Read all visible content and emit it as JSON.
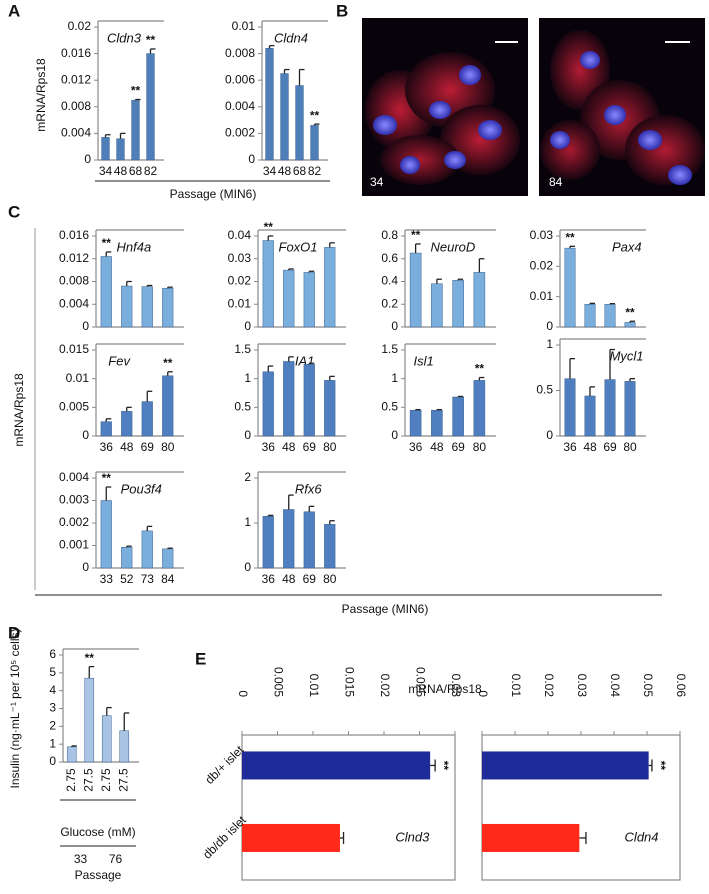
{
  "panels": [
    "A",
    "B",
    "C",
    "D",
    "E"
  ],
  "shared": {
    "a_ylabel": "mRNA/Rps18",
    "a_xlabel": "Passage (MIN6)",
    "c_ylabel": "mRNA/Rps18",
    "c_xlabel": "Passage (MIN6)",
    "e_xlabel": "mRNA/Rps18"
  },
  "images": [
    {
      "label": "34"
    },
    {
      "label": "84"
    }
  ],
  "chart_data": [
    {
      "type": "bar",
      "title": "Cldn3",
      "categories": [
        "34",
        "48",
        "68",
        "82"
      ],
      "values": [
        0.0034,
        0.0032,
        0.009,
        0.016
      ],
      "errors": [
        0.0004,
        0.0008,
        0.0001,
        0.0007
      ],
      "annotations": [
        null,
        null,
        "**",
        "**"
      ],
      "color": "#4f7fb8",
      "ylim": [
        0,
        0.02
      ],
      "yticks": [
        0,
        0.004,
        0.008,
        0.012,
        0.016,
        0.02
      ]
    },
    {
      "type": "bar",
      "title": "Cldn4",
      "categories": [
        "34",
        "48",
        "68",
        "82"
      ],
      "values": [
        0.0084,
        0.0065,
        0.0056,
        0.0026
      ],
      "errors": [
        0.0002,
        0.0003,
        0.0012,
        0.0001
      ],
      "annotations": [
        null,
        null,
        null,
        "**"
      ],
      "color": "#4f7fb8",
      "ylim": [
        0,
        0.01
      ],
      "yticks": [
        0,
        0.002,
        0.004,
        0.006,
        0.008,
        0.01
      ]
    },
    {
      "type": "bar",
      "title": "Hnf4a",
      "categories": [
        null,
        null,
        null,
        null
      ],
      "values": [
        0.0124,
        0.0072,
        0.0071,
        0.0068
      ],
      "errors": [
        0.0008,
        0.0008,
        0.0002,
        0.0002
      ],
      "annotations": [
        "**",
        null,
        null,
        null
      ],
      "color": "#7aafdd",
      "ylim": [
        0,
        0.016
      ],
      "yticks": [
        0,
        0.004,
        0.008,
        0.012,
        0.016
      ]
    },
    {
      "type": "bar",
      "title": "FoxO1",
      "categories": [
        null,
        null,
        null,
        null
      ],
      "values": [
        0.038,
        0.025,
        0.024,
        0.035
      ],
      "errors": [
        0.002,
        0.0005,
        0.0005,
        0.002
      ],
      "annotations": [
        "**",
        null,
        null,
        null
      ],
      "color": "#7aafdd",
      "ylim": [
        0,
        0.04
      ],
      "yticks": [
        0,
        0.01,
        0.02,
        0.03,
        0.04
      ]
    },
    {
      "type": "bar",
      "title": "NeuroD",
      "categories": [
        null,
        null,
        null,
        null
      ],
      "values": [
        0.65,
        0.38,
        0.41,
        0.48
      ],
      "errors": [
        0.08,
        0.04,
        0.01,
        0.12
      ],
      "annotations": [
        "**",
        null,
        null,
        null
      ],
      "color": "#7aafdd",
      "ylim": [
        0,
        0.8
      ],
      "yticks": [
        0,
        0.2,
        0.4,
        0.6,
        0.8
      ]
    },
    {
      "type": "bar",
      "title": "Pax4",
      "categories": [
        null,
        null,
        null,
        null
      ],
      "values": [
        0.026,
        0.0075,
        0.0075,
        0.0015
      ],
      "errors": [
        0.0006,
        0.0003,
        0.0002,
        0.0004
      ],
      "annotations": [
        "**",
        null,
        null,
        "**"
      ],
      "color": "#7aafdd",
      "ylim": [
        0,
        0.03
      ],
      "yticks": [
        0,
        0.01,
        0.02,
        0.03
      ]
    },
    {
      "type": "bar",
      "title": "Fev",
      "categories": [
        "36",
        "48",
        "69",
        "80"
      ],
      "values": [
        0.0025,
        0.0043,
        0.006,
        0.0105
      ],
      "errors": [
        0.0005,
        0.0007,
        0.0018,
        0.0007
      ],
      "annotations": [
        null,
        null,
        null,
        "**"
      ],
      "color": "#4f7fc0",
      "ylim": [
        0,
        0.015
      ],
      "yticks": [
        0,
        0.005,
        0.01,
        0.015
      ]
    },
    {
      "type": "bar",
      "title": "IA1",
      "categories": [
        "36",
        "48",
        "69",
        "80"
      ],
      "values": [
        1.12,
        1.3,
        1.25,
        0.97
      ],
      "errors": [
        0.1,
        0.08,
        0.02,
        0.07
      ],
      "annotations": [
        null,
        null,
        null,
        null
      ],
      "color": "#4f7fc0",
      "ylim": [
        0,
        1.5
      ],
      "yticks": [
        0,
        0.5,
        1,
        1.5
      ]
    },
    {
      "type": "bar",
      "title": "Isl1",
      "categories": [
        "36",
        "48",
        "69",
        "80"
      ],
      "values": [
        0.45,
        0.45,
        0.68,
        0.97
      ],
      "errors": [
        0.01,
        0.01,
        0.01,
        0.05
      ],
      "annotations": [
        null,
        null,
        null,
        "**"
      ],
      "color": "#4f7fc0",
      "ylim": [
        0,
        1.5
      ],
      "yticks": [
        0,
        0.5,
        1,
        1.5
      ]
    },
    {
      "type": "bar",
      "title": "Mycl1",
      "categories": [
        "36",
        "48",
        "69",
        "80"
      ],
      "values": [
        0.63,
        0.44,
        0.62,
        0.6
      ],
      "errors": [
        0.22,
        0.1,
        0.33,
        0.03
      ],
      "annotations": [
        null,
        null,
        null,
        null
      ],
      "color": "#4f7fc0",
      "ylim": [
        0,
        1
      ],
      "yticks": [
        0,
        0.5,
        1
      ]
    },
    {
      "type": "bar",
      "title": "Pou3f4",
      "categories": [
        "33",
        "52",
        "73",
        "84"
      ],
      "values": [
        0.003,
        0.00092,
        0.00165,
        0.00085
      ],
      "errors": [
        0.0006,
        5e-05,
        0.0002,
        3e-05
      ],
      "annotations": [
        "**",
        null,
        null,
        null
      ],
      "color": "#7aafdd",
      "ylim": [
        0,
        0.004
      ],
      "yticks": [
        0,
        0.001,
        0.002,
        0.003,
        0.004
      ]
    },
    {
      "type": "bar",
      "title": "Rfx6",
      "categories": [
        "36",
        "48",
        "69",
        "80"
      ],
      "values": [
        1.15,
        1.3,
        1.25,
        0.97
      ],
      "errors": [
        0.02,
        0.32,
        0.12,
        0.08
      ],
      "annotations": [
        null,
        null,
        null,
        null
      ],
      "color": "#4f7fc0",
      "ylim": [
        0,
        2
      ],
      "yticks": [
        0,
        1,
        2
      ]
    },
    {
      "type": "bar",
      "y_label": "Insulin (ng·mL⁻¹ per 10⁵ cells)",
      "categories": [
        "2.75",
        "27.5",
        "2.75",
        "27.5"
      ],
      "values": [
        0.85,
        4.7,
        2.6,
        1.75
      ],
      "errors": [
        0.05,
        0.65,
        0.45,
        1.0
      ],
      "annotations": [
        null,
        "**",
        null,
        null
      ],
      "color": "#a8c3e4",
      "ylim": [
        0,
        6
      ],
      "yticks": [
        0,
        1,
        2,
        3,
        4,
        5,
        6
      ],
      "x_label": "Glucose (mM)",
      "groups": [
        "33",
        "76"
      ],
      "group_label": "Passage"
    },
    {
      "type": "barh",
      "title": "Clnd3",
      "categories": [
        "db/+ islet",
        "db/db islet"
      ],
      "values": [
        0.0265,
        0.0138
      ],
      "errors": [
        0.0007,
        0.0005
      ],
      "annotations": [
        "**",
        null
      ],
      "colors": [
        "#1f2a99",
        "#ff2a1a"
      ],
      "xlim": [
        0,
        0.03
      ],
      "xticks": [
        0,
        0.005,
        0.01,
        0.015,
        0.02,
        0.025,
        0.03
      ]
    },
    {
      "type": "barh",
      "title": "Cldn4",
      "categories": [
        null,
        null
      ],
      "values": [
        0.0505,
        0.0295
      ],
      "errors": [
        0.001,
        0.002
      ],
      "annotations": [
        "**",
        null
      ],
      "colors": [
        "#1f2a99",
        "#ff2a1a"
      ],
      "xlim": [
        0,
        0.06
      ],
      "xticks": [
        0,
        0.01,
        0.02,
        0.03,
        0.04,
        0.05,
        0.06
      ]
    }
  ]
}
